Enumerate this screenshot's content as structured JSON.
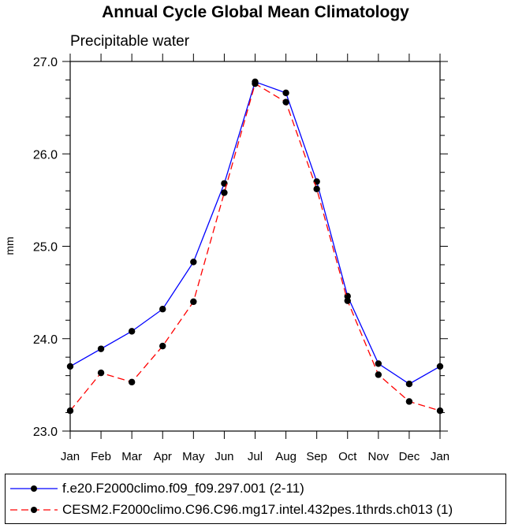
{
  "chart_data": {
    "type": "line",
    "title": "Annual Cycle Global Mean Climatology",
    "subtitle": "Precipitable water",
    "xlabel": "",
    "ylabel": "mm",
    "categories": [
      "Jan",
      "Feb",
      "Mar",
      "Apr",
      "May",
      "Jun",
      "Jul",
      "Aug",
      "Sep",
      "Oct",
      "Nov",
      "Dec",
      "Jan"
    ],
    "ylim": [
      23.0,
      27.0
    ],
    "yticks": [
      "23.0",
      "24.0",
      "25.0",
      "26.0",
      "27.0"
    ],
    "series": [
      {
        "name": "f.e20.F2000climo.f09_f09.297.001 (2-11)",
        "color": "#0000ff",
        "dash": "solid",
        "values": [
          23.7,
          23.89,
          24.08,
          24.32,
          24.83,
          25.68,
          26.78,
          26.66,
          25.7,
          24.46,
          23.73,
          23.51,
          23.7
        ]
      },
      {
        "name": "CESM2.F2000climo.C96.C96.mg17.intel.432pes.1thrds.ch013 (1)",
        "color": "#ff0000",
        "dash": "dashed",
        "values": [
          23.22,
          23.63,
          23.53,
          23.92,
          24.4,
          25.58,
          26.76,
          26.56,
          25.62,
          24.41,
          23.61,
          23.32,
          23.22
        ]
      }
    ]
  }
}
